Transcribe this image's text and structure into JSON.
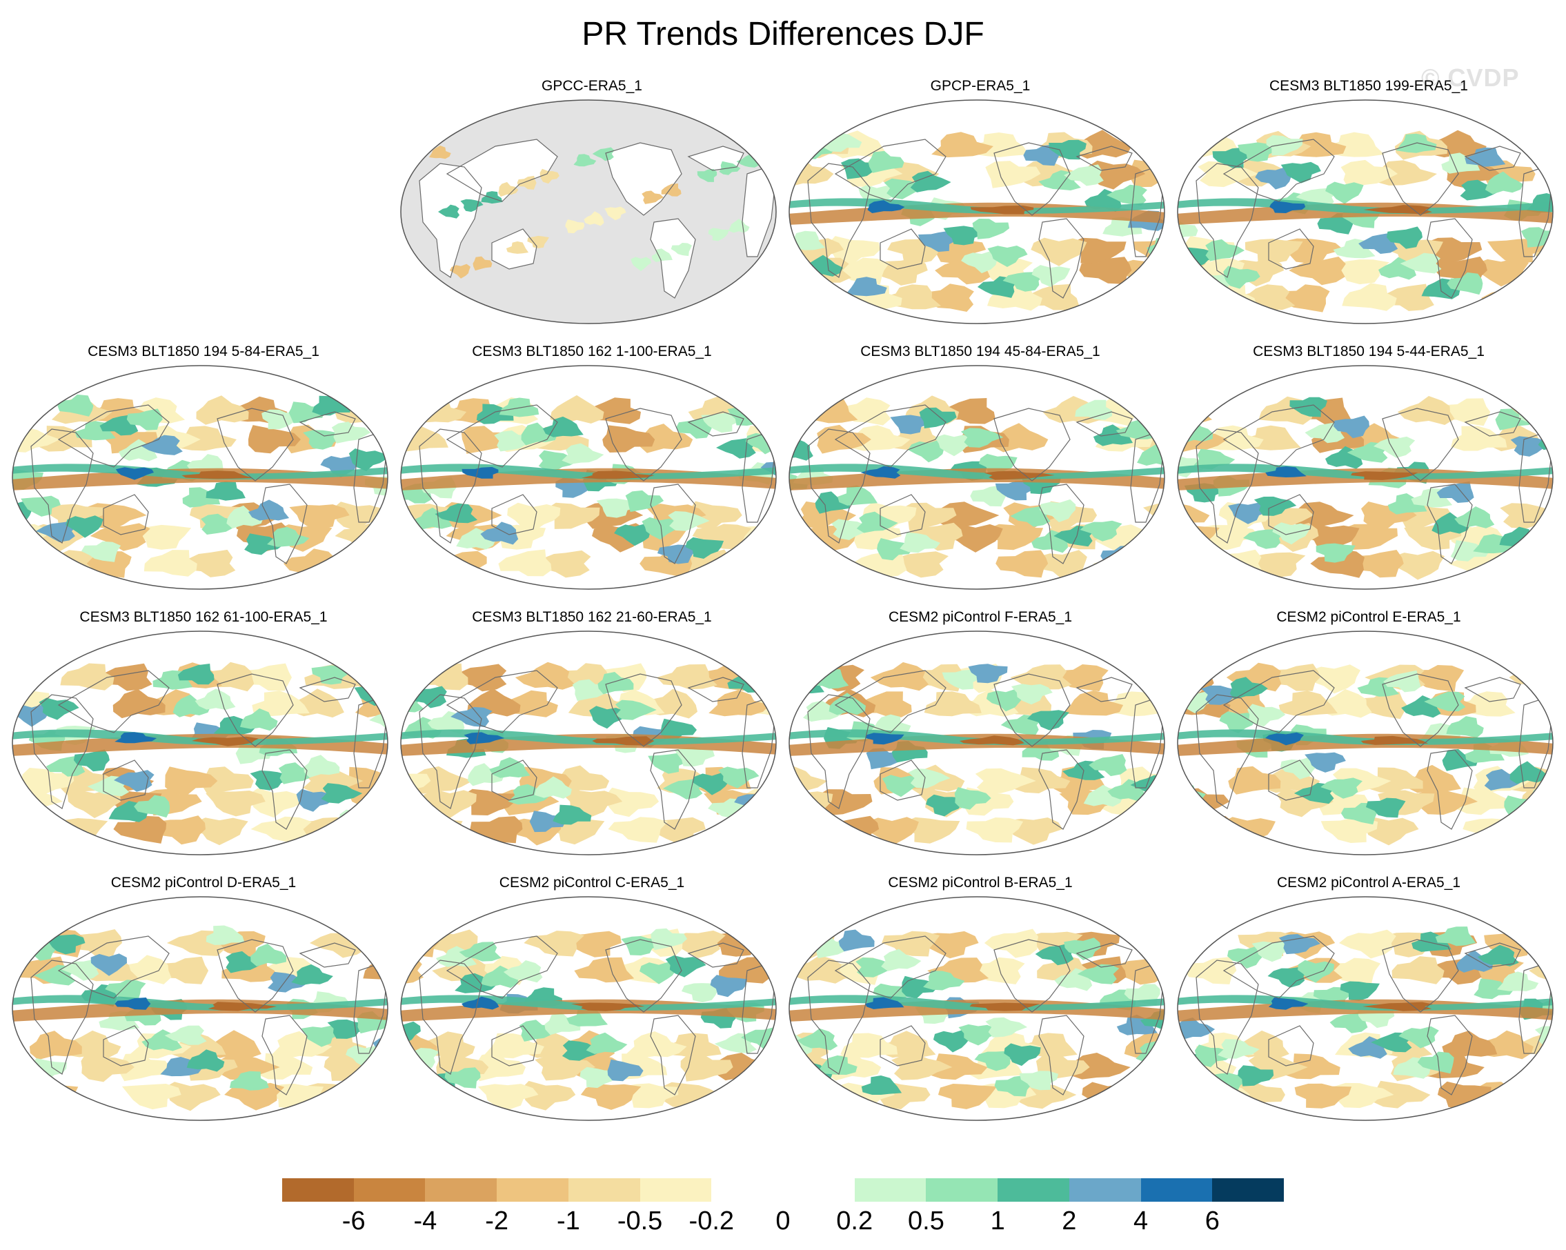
{
  "title": "PR Trends Differences DJF",
  "watermark": "© CVDP",
  "panels": [
    {
      "title": "GPCC-ERA5_1",
      "missing_ocean": true
    },
    {
      "title": "GPCP-ERA5_1"
    },
    {
      "title": "CESM3 BLT1850 199-ERA5_1"
    },
    {
      "title": "CESM3 BLT1850 194 5-84-ERA5_1"
    },
    {
      "title": "CESM3 BLT1850 162 1-100-ERA5_1"
    },
    {
      "title": "CESM3 BLT1850 194 45-84-ERA5_1"
    },
    {
      "title": "CESM3 BLT1850 194 5-44-ERA5_1"
    },
    {
      "title": "CESM3 BLT1850 162 61-100-ERA5_1"
    },
    {
      "title": "CESM3 BLT1850 162 21-60-ERA5_1"
    },
    {
      "title": "CESM2 piControl F-ERA5_1"
    },
    {
      "title": "CESM2 piControl E-ERA5_1"
    },
    {
      "title": "CESM2 piControl D-ERA5_1"
    },
    {
      "title": "CESM2 piControl C-ERA5_1"
    },
    {
      "title": "CESM2 piControl B-ERA5_1"
    },
    {
      "title": "CESM2 piControl A-ERA5_1"
    }
  ],
  "colorbar": {
    "colors": [
      "#b26a2c",
      "#c9853f",
      "#dba35f",
      "#eec47f",
      "#f4dda0",
      "#fbf2c0",
      "#ffffff",
      "#ffffff",
      "#cbf7cf",
      "#95e5b4",
      "#4dbb9a",
      "#6ba7c9",
      "#1a70b0",
      "#053b5e"
    ],
    "labels": [
      "-6",
      "-4",
      "-2",
      "-1",
      "-0.5",
      "-0.2",
      "0",
      "0.2",
      "0.5",
      "1",
      "2",
      "4",
      "6"
    ]
  },
  "map_colors": {
    "missing": "#e3e3e3",
    "coast": "#6a6a6a"
  }
}
